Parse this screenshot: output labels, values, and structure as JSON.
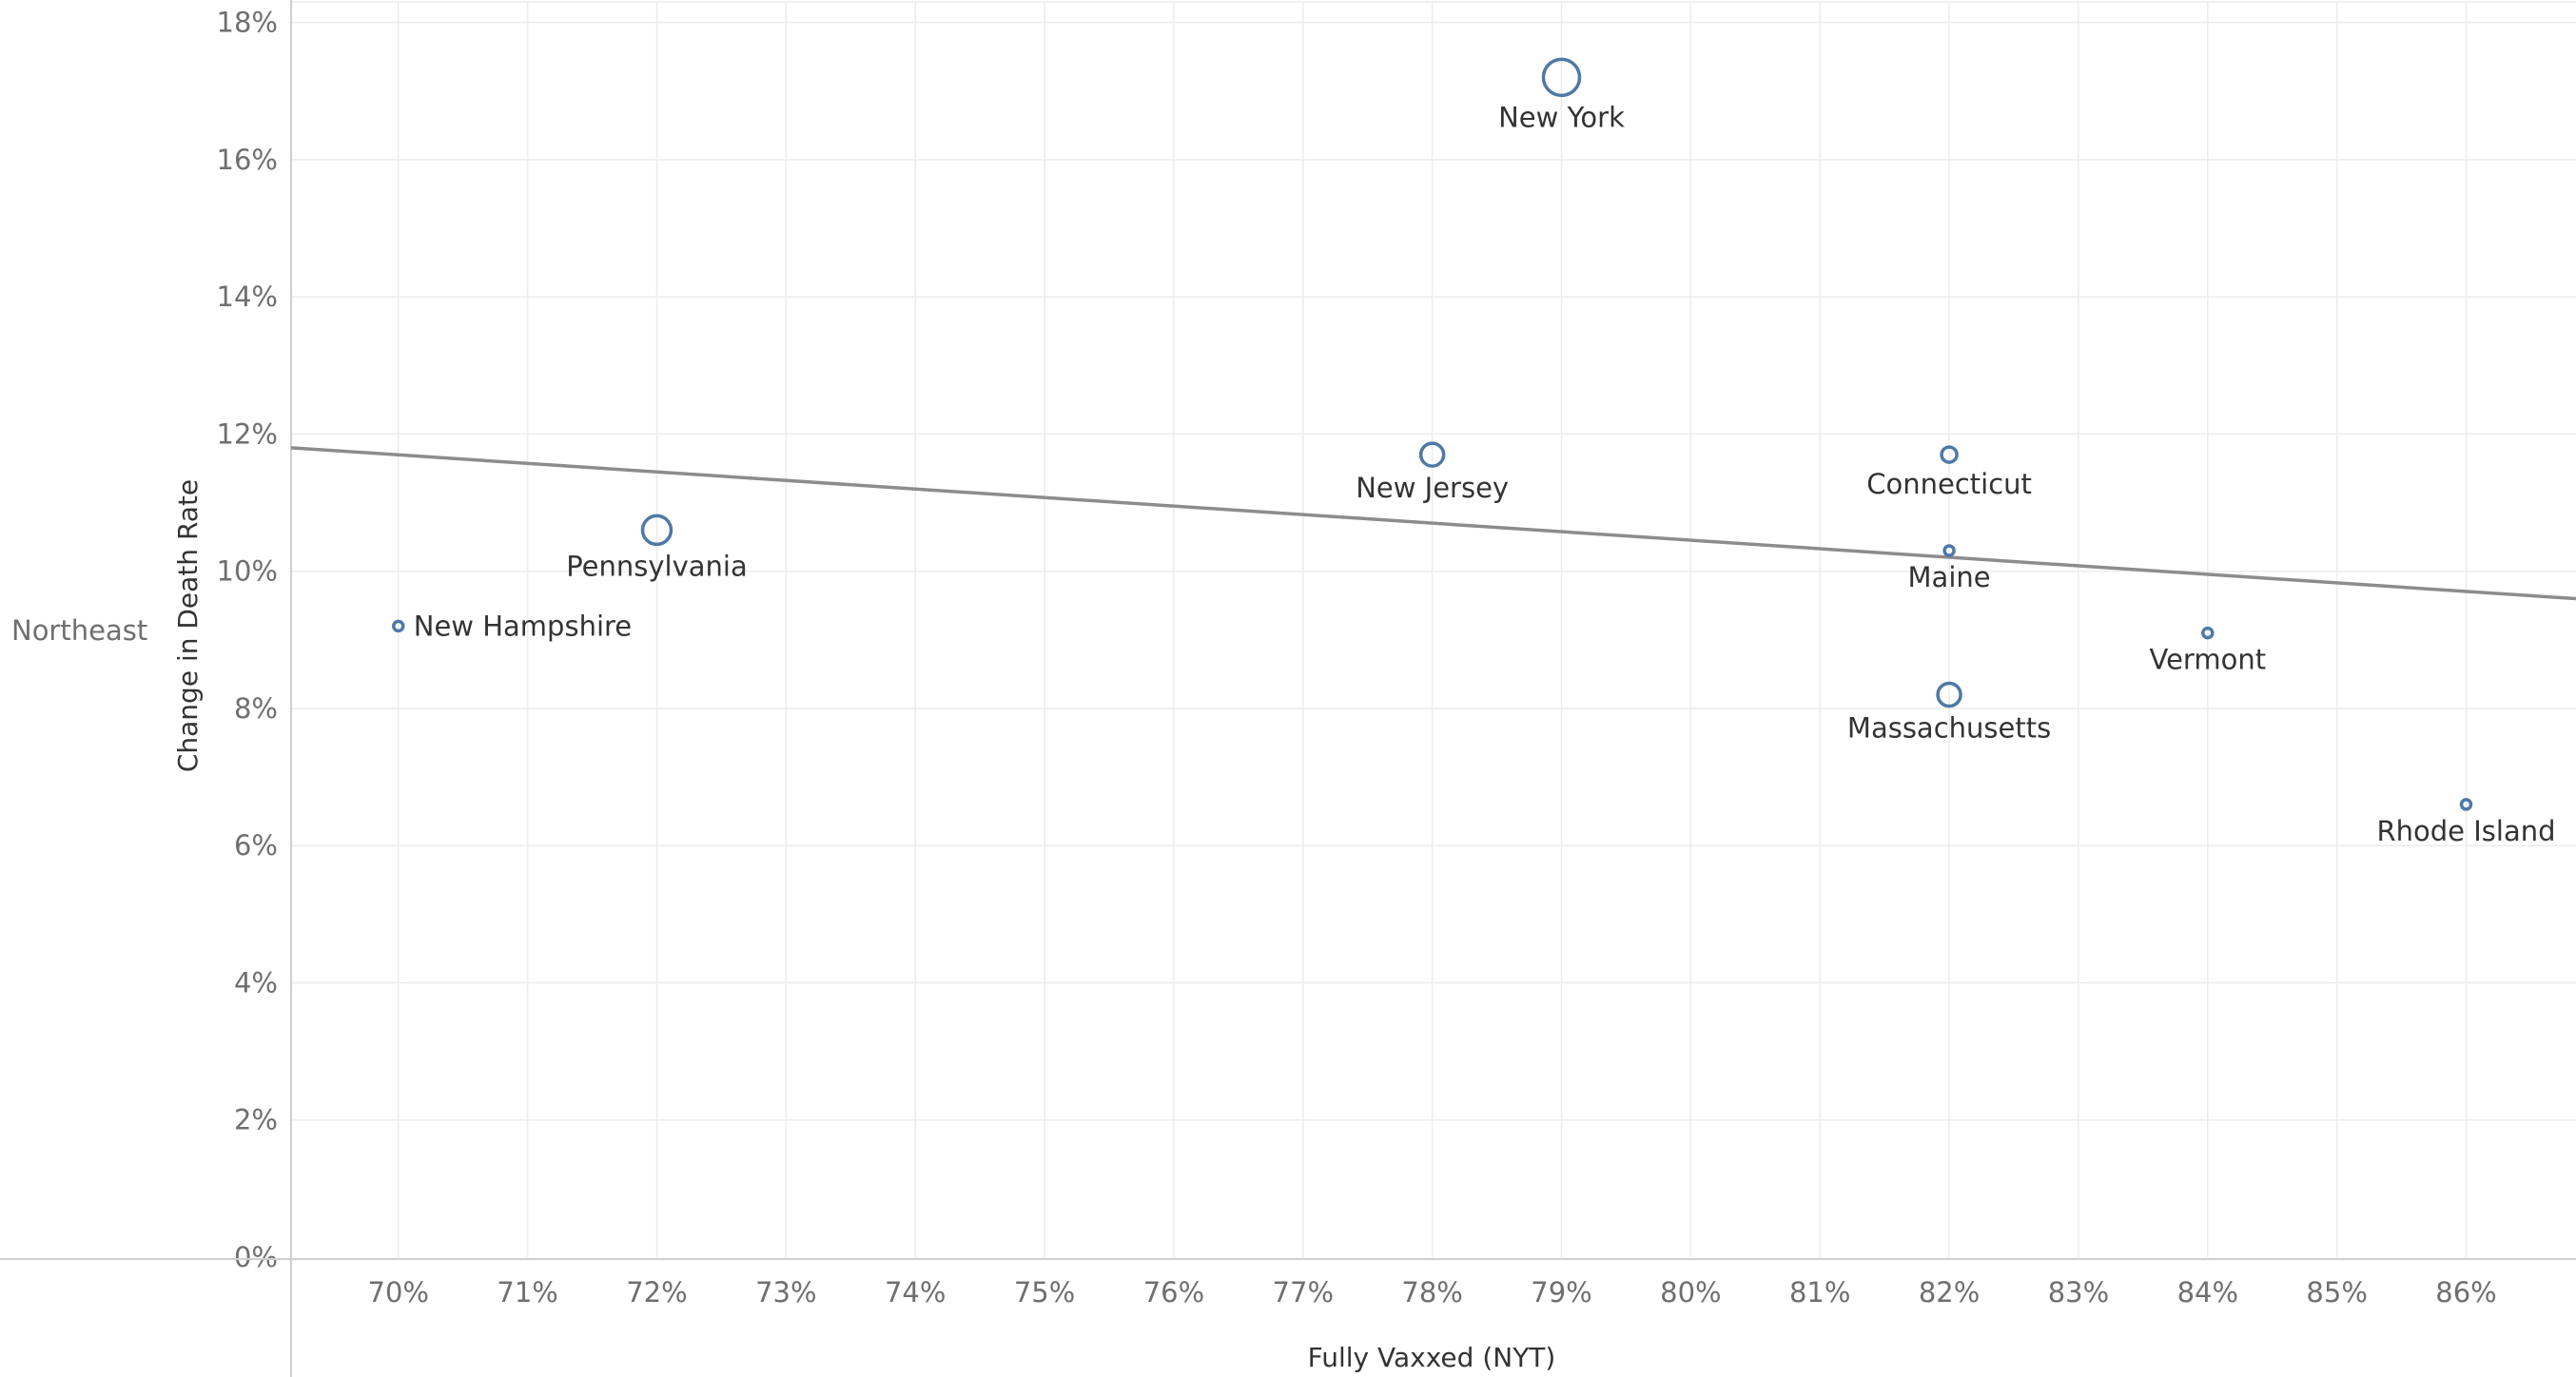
{
  "chart_data": {
    "type": "scatter",
    "row_header": "Northeast",
    "xlabel": "Fully Vaxxed (NYT)",
    "ylabel": "Change in Death Rate",
    "xlim": [
      69.17,
      86.85
    ],
    "ylim": [
      0,
      18.3
    ],
    "x_ticks": [
      "70%",
      "71%",
      "72%",
      "73%",
      "74%",
      "75%",
      "76%",
      "77%",
      "78%",
      "79%",
      "80%",
      "81%",
      "82%",
      "83%",
      "84%",
      "85%",
      "86%"
    ],
    "y_ticks": [
      "0%",
      "2%",
      "4%",
      "6%",
      "8%",
      "10%",
      "12%",
      "14%",
      "16%",
      "18%"
    ],
    "x_tick_values": [
      70,
      71,
      72,
      73,
      74,
      75,
      76,
      77,
      78,
      79,
      80,
      81,
      82,
      83,
      84,
      85,
      86
    ],
    "y_tick_values": [
      0,
      2,
      4,
      6,
      8,
      10,
      12,
      14,
      16,
      18
    ],
    "grid": true,
    "points": [
      {
        "label": "New York",
        "x": 79,
        "y": 17.2,
        "size": "large",
        "label_side": "below"
      },
      {
        "label": "New Jersey",
        "x": 78,
        "y": 11.7,
        "size": "medium",
        "label_side": "below"
      },
      {
        "label": "Connecticut",
        "x": 82,
        "y": 11.7,
        "size": "small",
        "label_side": "below"
      },
      {
        "label": "Pennsylvania",
        "x": 72,
        "y": 10.6,
        "size": "medium-large",
        "label_side": "below"
      },
      {
        "label": "Maine",
        "x": 82,
        "y": 10.3,
        "size": "tiny",
        "label_side": "below"
      },
      {
        "label": "New Hampshire",
        "x": 70,
        "y": 9.2,
        "size": "tiny",
        "label_side": "right"
      },
      {
        "label": "Vermont",
        "x": 84,
        "y": 9.1,
        "size": "tiny",
        "label_side": "below"
      },
      {
        "label": "Massachusetts",
        "x": 82,
        "y": 8.2,
        "size": "medium",
        "label_side": "below"
      },
      {
        "label": "Rhode Island",
        "x": 86,
        "y": 6.6,
        "size": "tiny",
        "label_side": "below"
      }
    ],
    "trend_line": {
      "x": [
        69.17,
        86.85
      ],
      "y": [
        11.8,
        9.6
      ]
    },
    "colors": {
      "marker": "#4e79a7",
      "trend": "#8c8c8c",
      "grid": "#ececec"
    }
  }
}
